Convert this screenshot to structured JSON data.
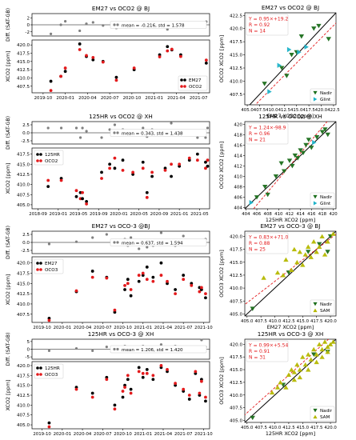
{
  "colors": {
    "em27": "#000000",
    "oco": "#e31a1c",
    "diff": "#808080",
    "nadir": "#1b6e1b",
    "glint": "#1fb3c9",
    "sam": "#b5b800",
    "fit": "#e31a1c",
    "oneone": "#000000"
  },
  "chart_data": [
    {
      "id": "ts1",
      "type": "scatter",
      "title": "EM27 vs OCO2 @ BJ",
      "diff_ylabel": "Diff. (SAT-GB)",
      "diff_yticks": [
        "2",
        "0",
        "-2"
      ],
      "diff_ylim": [
        -3.2,
        3.2
      ],
      "diff_legend": "mean = -0.216, std = 1.578",
      "ylabel": "XCO2 [ppm]",
      "yticks": [
        "420.0",
        "417.5",
        "415.0",
        "412.5",
        "410.0",
        "407.5"
      ],
      "ylim": [
        405.5,
        421.5
      ],
      "xticks": [
        "2019-10",
        "2020-01",
        "2020-04",
        "2020-07",
        "2020-10",
        "2021-01",
        "2021-04",
        "2021-07"
      ],
      "xlim": [
        -0.5,
        7.5
      ],
      "legend": [
        "EM27",
        "OCO2"
      ],
      "legend_pos": "lower right",
      "x": [
        0.35,
        0.8,
        1.0,
        1.65,
        1.95,
        2.25,
        2.7,
        3.3,
        4.1,
        5.25,
        5.6,
        5.8,
        6.2,
        7.35
      ],
      "ground": [
        409.0,
        410.5,
        412.0,
        420.3,
        416.5,
        415.5,
        415.0,
        410.2,
        412.5,
        417.0,
        419.5,
        418.5,
        417.0,
        414.5
      ],
      "sat": [
        406.2,
        410.5,
        413.0,
        418.6,
        416.8,
        416.2,
        414.8,
        409.3,
        413.0,
        416.4,
        418.2,
        418.7,
        416.5,
        415.4
      ],
      "diff": [
        -2.6,
        0.0,
        1.0,
        -1.7,
        0.3,
        0.7,
        -0.2,
        -0.9,
        0.5,
        -0.6,
        -1.3,
        0.2,
        -0.5,
        0.9
      ]
    },
    {
      "id": "ts2",
      "type": "scatter",
      "title": "125HR vs OCO2 @ XH",
      "diff_ylabel": "Diff. (SAT-GB)",
      "diff_yticks": [
        "2.5",
        "0.0",
        "-2.5"
      ],
      "diff_ylim": [
        -3.5,
        3.5
      ],
      "diff_legend": "mean = 0.343, std = 1.438",
      "ylabel": "XCO2 [ppm]",
      "yticks": [
        "417.5",
        "415.0",
        "412.5",
        "410.0",
        "407.5",
        "405.0"
      ],
      "ylim": [
        404.0,
        419.0
      ],
      "xticks": [
        "2018-09",
        "2019-01",
        "2019-05",
        "2019-09",
        "2020-01",
        "2020-05",
        "2020-09",
        "2021-01",
        "2021-05"
      ],
      "xlim": [
        -0.3,
        8.5
      ],
      "legend": [
        "125HR",
        "OCO2"
      ],
      "legend_pos": "upper left",
      "x": [
        0.5,
        1.15,
        1.9,
        2.1,
        2.2,
        2.4,
        3.15,
        3.55,
        3.8,
        4.2,
        4.7,
        5.2,
        5.4,
        5.65,
        6.3,
        6.6,
        7.0,
        7.5,
        7.9,
        8.3,
        8.4
      ],
      "ground": [
        409.5,
        411.5,
        407.0,
        408.0,
        406.5,
        405.8,
        413.0,
        415.0,
        414.0,
        416.0,
        412.5,
        415.5,
        408.0,
        412.0,
        414.0,
        412.0,
        414.5,
        416.0,
        417.5,
        415.5,
        414.5
      ],
      "sat": [
        411.0,
        411.0,
        408.5,
        406.5,
        408.0,
        405.2,
        411.5,
        414.0,
        416.5,
        413.5,
        413.0,
        414.0,
        406.8,
        413.0,
        413.5,
        415.0,
        415.0,
        416.5,
        416.0,
        414.0,
        416.0
      ],
      "diff": [
        1.5,
        1.5,
        1.5,
        -1.5,
        1.5,
        0.5,
        -1.5,
        1.0,
        2.5,
        1.0,
        0.5,
        1.5,
        -1.2,
        1.0,
        -0.5,
        3.0,
        0.5,
        0.5,
        -1.5,
        -1.5,
        1.5
      ]
    },
    {
      "id": "ts3",
      "type": "scatter",
      "title": "EM27 vs OCO-3 @BJ",
      "diff_ylabel": "Diff. (SAT-GB)",
      "diff_yticks": [
        "2.5",
        "0.0",
        "-2.5"
      ],
      "diff_ylim": [
        -3.5,
        3.5
      ],
      "diff_legend": "mean = 0.637, std = 1.594",
      "ylabel": "XCO2 [ppm]",
      "yticks": [
        "420.0",
        "417.5",
        "415.0",
        "412.5",
        "410.0",
        "407.5"
      ],
      "ylim": [
        405.5,
        421.5
      ],
      "xticks": [
        "2019-10",
        "2020-01",
        "2020-04",
        "2020-07",
        "2020-10",
        "2021-01",
        "2021-04",
        "2021-07",
        "2021-10"
      ],
      "xlim": [
        -0.5,
        8.3
      ],
      "legend": [
        "EM27",
        "OCO3"
      ],
      "legend_pos": "upper left",
      "x": [
        0.35,
        1.7,
        2.5,
        3.2,
        3.6,
        4.1,
        4.25,
        4.4,
        4.8,
        5.0,
        5.2,
        5.5,
        5.9,
        6.2,
        6.6,
        7.0,
        7.4,
        7.8,
        7.9,
        8.1
      ],
      "ground": [
        406.5,
        413.0,
        418.0,
        416.5,
        408.0,
        413.5,
        416.0,
        412.0,
        415.5,
        417.0,
        419.0,
        416.5,
        420.0,
        415.0,
        413.5,
        417.0,
        415.0,
        414.0,
        413.5,
        411.5
      ],
      "sat": [
        406.0,
        413.2,
        416.5,
        416.3,
        408.5,
        414.5,
        415.0,
        413.5,
        417.0,
        417.5,
        416.0,
        415.5,
        417.0,
        415.5,
        412.5,
        416.0,
        414.5,
        413.0,
        414.0,
        412.5
      ],
      "diff": [
        -0.5,
        0.2,
        1.5,
        2.5,
        0.5,
        1.0,
        -1.0,
        1.5,
        -2.0,
        0.5,
        -1.5,
        -1.0,
        3.0,
        0.5,
        -1.0,
        2.0,
        -0.5,
        0.5,
        0.5,
        1.0
      ]
    },
    {
      "id": "ts4",
      "type": "scatter",
      "title": "125HR vs OCO-3 @ XH",
      "diff_ylabel": "Diff. (SAT-GB)",
      "diff_yticks": [
        "5",
        "0",
        "-5"
      ],
      "diff_ylim": [
        -6.5,
        6.5
      ],
      "diff_legend": "mean = 1.206, std = 1.420",
      "ylabel": "XCO2 [ppm]",
      "yticks": [
        "420.0",
        "417.5",
        "415.0",
        "412.5",
        "410.0",
        "407.5",
        "405.0"
      ],
      "ylim": [
        404.0,
        421.0
      ],
      "xticks": [
        "2019-10",
        "2020-01",
        "2020-04",
        "2020-07",
        "2020-10",
        "2021-01",
        "2021-04",
        "2021-07",
        "2021-10"
      ],
      "xlim": [
        -0.5,
        8.3
      ],
      "legend": [
        "125HR",
        "OCO3"
      ],
      "legend_pos": "upper left",
      "x": [
        0.35,
        1.7,
        2.5,
        3.2,
        3.6,
        4.0,
        4.1,
        4.25,
        4.4,
        4.8,
        5.0,
        5.2,
        5.5,
        5.9,
        6.2,
        6.6,
        7.0,
        7.3,
        7.6,
        7.8,
        7.9,
        8.1
      ],
      "ground": [
        405.5,
        414.5,
        413.0,
        417.0,
        410.0,
        412.0,
        415.0,
        416.5,
        414.0,
        419.5,
        417.0,
        419.0,
        416.5,
        419.5,
        418.5,
        415.0,
        413.5,
        411.5,
        418.0,
        412.5,
        416.5,
        411.0
      ],
      "sat": [
        404.5,
        414.0,
        412.0,
        416.5,
        409.0,
        413.5,
        414.5,
        417.5,
        413.0,
        418.5,
        418.0,
        418.0,
        417.5,
        420.0,
        419.0,
        415.5,
        414.0,
        412.5,
        418.5,
        413.0,
        416.0,
        412.0
      ],
      "diff": [
        -1.0,
        0.5,
        -1.0,
        1.5,
        1.0,
        1.5,
        2.0,
        1.0,
        -1.0,
        1.0,
        2.0,
        1.5,
        1.0,
        3.0,
        1.0,
        2.0,
        0.5,
        1.5,
        0.5,
        1.0,
        6.0,
        1.5
      ]
    },
    {
      "id": "sc1",
      "type": "scatter",
      "title": "EM27 vs OCO2 @ BJ",
      "xlabel": "EM27 XCO2 [ppm]",
      "ylabel": "OCO2 XCO2 [ppm]",
      "xlim": [
        404.5,
        423
      ],
      "ylim": [
        405.5,
        423
      ],
      "xticks": [
        "405.0",
        "407.5",
        "410.0",
        "412.5",
        "415.0",
        "417.5",
        "420.0",
        "422.5"
      ],
      "yticks": [
        "422.5",
        "420.0",
        "417.5",
        "415.0",
        "412.5",
        "410.0",
        "407.5"
      ],
      "stats": [
        "Y = 0.95×+19.2",
        "R = 0.92",
        "N = 14"
      ],
      "fit": {
        "slope": 0.95,
        "intercept": 19.2
      },
      "legend": [
        "Nadir",
        "Glint"
      ],
      "series": [
        {
          "name": "Nadir",
          "x": [
            408.5,
            412.0,
            413.0,
            414.0,
            415.0,
            416.0,
            418.5,
            419.5,
            421.5
          ],
          "y": [
            409.5,
            412.5,
            411.0,
            415.0,
            415.5,
            418.5,
            420.0,
            420.5,
            418.0
          ]
        },
        {
          "name": "Glint",
          "x": [
            409.5,
            411.5,
            413.5,
            415.5,
            417.0
          ],
          "y": [
            408.0,
            413.0,
            416.0,
            415.5,
            416.5
          ]
        }
      ]
    },
    {
      "id": "sc2",
      "type": "scatter",
      "title": "125HR vs OCO2 @ XH",
      "xlabel": "125HR XCO2 [ppm]",
      "ylabel": "OCO2 XCO2 [ppm]",
      "xlim": [
        403.8,
        420.5
      ],
      "ylim": [
        403.8,
        420.5
      ],
      "xticks": [
        "404",
        "406",
        "408",
        "410",
        "412",
        "414",
        "416",
        "418",
        "420"
      ],
      "yticks": [
        "420",
        "418",
        "416",
        "414",
        "412",
        "410",
        "408",
        "406",
        "404"
      ],
      "stats": [
        "Y = 1.24×-98.9",
        "R = 0.96",
        "N = 21"
      ],
      "fit": {
        "slope": 1.24,
        "intercept": -98.9
      },
      "legend": [
        "Nadir",
        "Glint"
      ],
      "series": [
        {
          "name": "Nadir",
          "x": [
            406.0,
            407.5,
            408.0,
            409.5,
            410.5,
            411.0,
            412.0,
            412.5,
            413.0,
            413.5,
            414.0,
            414.5,
            415.0,
            415.5,
            416.0,
            417.0,
            418.0,
            418.5,
            419.0
          ],
          "y": [
            406.0,
            408.0,
            406.5,
            410.0,
            412.5,
            411.0,
            413.0,
            412.0,
            414.0,
            413.5,
            415.0,
            414.5,
            416.0,
            417.0,
            415.5,
            417.5,
            418.5,
            419.0,
            418.0
          ]
        },
        {
          "name": "Glint",
          "x": [
            405.0,
            416.5
          ],
          "y": [
            405.0,
            416.5
          ]
        }
      ]
    },
    {
      "id": "sc3",
      "type": "scatter",
      "title": "EM27 vs OCO-3 @ BJ",
      "xlabel": "EM27 XCO2 [ppm]",
      "ylabel": "OCO3 XCO2 [ppm]",
      "xlim": [
        404.6,
        421.0
      ],
      "ylim": [
        404.6,
        421.0
      ],
      "xticks": [
        "405.0",
        "407.5",
        "410.0",
        "412.5",
        "415.0",
        "417.5",
        "420.0"
      ],
      "xtick_labels_raw": "405.0407.5410.0412.5415.0417.5420.0",
      "yticks": [
        "420.0",
        "417.5",
        "415.0",
        "412.5",
        "410.0",
        "407.5",
        "405.0"
      ],
      "stats": [
        "Y = 0.83×+71.0",
        "R = 0.88",
        "N = 25"
      ],
      "fit": {
        "slope": 0.83,
        "intercept": 71.0
      },
      "legend": [
        "Nadir",
        "SAM"
      ],
      "series": [
        {
          "name": "Nadir",
          "x": [
            406.0,
            412.5,
            416.0,
            418.0,
            419.5,
            420.0
          ],
          "y": [
            406.0,
            413.0,
            417.0,
            418.5,
            417.0,
            420.0
          ]
        },
        {
          "name": "SAM",
          "x": [
            408.0,
            410.5,
            411.5,
            412.0,
            413.0,
            413.5,
            414.0,
            414.5,
            415.0,
            415.5,
            416.0,
            416.5,
            417.0,
            417.5,
            418.0,
            418.5,
            419.0,
            419.5,
            420.5
          ],
          "y": [
            412.0,
            413.0,
            412.5,
            415.5,
            413.5,
            417.5,
            415.0,
            417.0,
            414.5,
            416.5,
            418.0,
            416.0,
            419.0,
            417.0,
            418.0,
            420.0,
            416.5,
            419.0,
            420.5
          ]
        }
      ]
    },
    {
      "id": "sc4",
      "type": "scatter",
      "title": "125HR vs OCO-3 @ XH",
      "xlabel": "125HR XCO2 [ppm]",
      "ylabel": "OCO3 XCO2 [ppm]",
      "xlim": [
        404.6,
        421.0
      ],
      "ylim": [
        404.6,
        421.0
      ],
      "xticks": [
        "405.0",
        "407.5",
        "410.0",
        "412.5",
        "415.0",
        "417.5",
        "420.0"
      ],
      "yticks": [
        "420.0",
        "417.5",
        "415.0",
        "412.5",
        "410.0",
        "407.5",
        "405.0"
      ],
      "stats": [
        "Y = 0.99×+5.54",
        "R = 0.91",
        "N = 31"
      ],
      "fit": {
        "slope": 0.99,
        "intercept": 5.54
      },
      "legend": [
        "Nadir",
        "SAM"
      ],
      "series": [
        {
          "name": "Nadir",
          "x": [
            406.0,
            411.5,
            417.0,
            419.5
          ],
          "y": [
            405.5,
            412.0,
            418.0,
            418.5
          ]
        },
        {
          "name": "SAM",
          "x": [
            409.5,
            411.0,
            412.0,
            412.5,
            413.0,
            413.5,
            414.0,
            414.5,
            415.0,
            415.5,
            416.0,
            416.5,
            417.0,
            417.5,
            418.0,
            418.5,
            419.0,
            419.5,
            420.0,
            420.5,
            414.5,
            416.0,
            417.5,
            418.5,
            419.5,
            413.5,
            410.5
          ],
          "y": [
            410.5,
            412.5,
            411.5,
            414.0,
            415.0,
            413.0,
            416.0,
            415.0,
            417.5,
            416.0,
            418.0,
            417.0,
            419.0,
            418.0,
            420.0,
            419.0,
            420.5,
            419.5,
            420.0,
            420.5,
            413.5,
            415.0,
            416.5,
            417.5,
            418.5,
            414.5,
            411.5
          ]
        }
      ]
    }
  ]
}
